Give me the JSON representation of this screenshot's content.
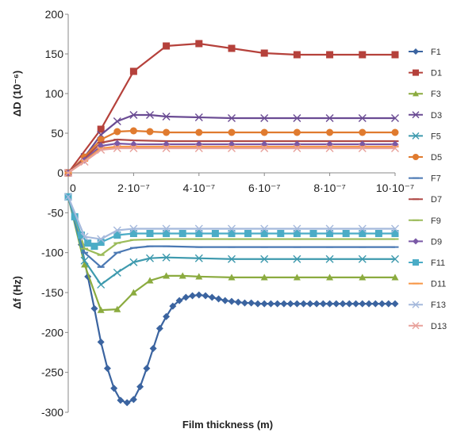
{
  "chart_data": {
    "type": "line",
    "xlabel": "Film thickness (m)",
    "grid": false,
    "legend_position": "right",
    "x_ticks": [
      "0",
      "2·10⁻⁷",
      "4·10⁻⁷",
      "6·10⁻⁷",
      "8·10⁻⁷",
      "10·10⁻⁷"
    ],
    "x_tick_values": [
      0,
      2e-07,
      4e-07,
      6e-07,
      8e-07,
      1e-06
    ],
    "xlim": [
      0,
      1e-06
    ],
    "panels": [
      {
        "id": "top",
        "ylabel": "ΔD (10⁻⁶)",
        "ylim": [
          0,
          200
        ],
        "y_ticks": [
          0,
          50,
          100,
          150,
          200
        ]
      },
      {
        "id": "bottom",
        "ylabel": "Δf (Hz)",
        "ylim": [
          -300,
          0
        ],
        "y_ticks": [
          -50,
          -100,
          -150,
          -200,
          -250,
          -300
        ]
      }
    ],
    "series": [
      {
        "name": "F1",
        "panel": "bottom",
        "color": "#3b64a0",
        "marker": "diamond",
        "x": [
          0,
          2e-08,
          4e-08,
          6e-08,
          8e-08,
          1e-07,
          1.2e-07,
          1.4e-07,
          1.6e-07,
          1.8e-07,
          2e-07,
          2.2e-07,
          2.4e-07,
          2.6e-07,
          2.8e-07,
          3e-07,
          3.2e-07,
          3.4e-07,
          3.6e-07,
          3.8e-07,
          4e-07,
          4.2e-07,
          4.4e-07,
          4.6e-07,
          4.8e-07,
          5e-07,
          5.2e-07,
          5.4e-07,
          5.6e-07,
          5.8e-07,
          6e-07,
          6.2e-07,
          6.4e-07,
          6.6e-07,
          6.8e-07,
          7e-07,
          7.2e-07,
          7.4e-07,
          7.6e-07,
          7.8e-07,
          8e-07,
          8.2e-07,
          8.4e-07,
          8.6e-07,
          8.8e-07,
          9e-07,
          9.2e-07,
          9.4e-07,
          9.6e-07,
          9.8e-07,
          1e-06
        ],
        "y": [
          -30,
          -55,
          -90,
          -130,
          -170,
          -212,
          -245,
          -270,
          -285,
          -288,
          -284,
          -268,
          -245,
          -220,
          -195,
          -180,
          -167,
          -160,
          -156,
          -154,
          -153,
          -154,
          -156,
          -158,
          -160,
          -161,
          -162,
          -163,
          -163,
          -164,
          -164,
          -164,
          -164,
          -164,
          -164,
          -164,
          -164,
          -164,
          -164,
          -164,
          -164,
          -164,
          -164,
          -164,
          -164,
          -164,
          -164,
          -164,
          -164,
          -164,
          -164
        ]
      },
      {
        "name": "D1",
        "panel": "top",
        "color": "#b5413b",
        "marker": "square",
        "x": [
          0,
          1e-07,
          2e-07,
          3e-07,
          4e-07,
          5e-07,
          6e-07,
          7e-07,
          8e-07,
          9e-07,
          1e-06
        ],
        "y": [
          0,
          55,
          128,
          160,
          163,
          157,
          151,
          149,
          149,
          149,
          149
        ]
      },
      {
        "name": "F3",
        "panel": "bottom",
        "color": "#8bab3f",
        "marker": "triangle",
        "x": [
          0,
          5e-08,
          1e-07,
          1.5e-07,
          2e-07,
          2.5e-07,
          3e-07,
          3.5e-07,
          4e-07,
          5e-07,
          6e-07,
          7e-07,
          8e-07,
          9e-07,
          1e-06
        ],
        "y": [
          -30,
          -115,
          -172,
          -171,
          -150,
          -135,
          -129,
          -129,
          -130,
          -131,
          -131,
          -131,
          -131,
          -131,
          -131
        ]
      },
      {
        "name": "D3",
        "panel": "top",
        "color": "#6a4b93",
        "marker": "x",
        "x": [
          0,
          5e-08,
          1e-07,
          1.5e-07,
          2e-07,
          2.5e-07,
          3e-07,
          4e-07,
          5e-07,
          6e-07,
          7e-07,
          8e-07,
          9e-07,
          1e-06
        ],
        "y": [
          0,
          20,
          48,
          65,
          73,
          73,
          71,
          70,
          69,
          69,
          69,
          69,
          69,
          69
        ]
      },
      {
        "name": "F5",
        "panel": "bottom",
        "color": "#3e9aae",
        "marker": "x",
        "x": [
          0,
          5e-08,
          1e-07,
          1.5e-07,
          2e-07,
          2.5e-07,
          3e-07,
          4e-07,
          5e-07,
          6e-07,
          7e-07,
          8e-07,
          9e-07,
          1e-06
        ],
        "y": [
          -30,
          -110,
          -140,
          -125,
          -112,
          -107,
          -106,
          -107,
          -108,
          -108,
          -108,
          -108,
          -108,
          -108
        ]
      },
      {
        "name": "D5",
        "panel": "top",
        "color": "#e07b2f",
        "marker": "circle",
        "x": [
          0,
          5e-08,
          1e-07,
          1.5e-07,
          2e-07,
          2.5e-07,
          3e-07,
          4e-07,
          5e-07,
          6e-07,
          7e-07,
          8e-07,
          9e-07,
          1e-06
        ],
        "y": [
          0,
          20,
          42,
          52,
          53,
          52,
          51,
          51,
          51,
          51,
          51,
          51,
          51,
          51
        ]
      },
      {
        "name": "F7",
        "panel": "bottom",
        "color": "#4a78b3",
        "marker": "dash",
        "x": [
          0,
          5e-08,
          1e-07,
          1.5e-07,
          2e-07,
          2.5e-07,
          3e-07,
          4e-07,
          5e-07,
          6e-07,
          7e-07,
          8e-07,
          9e-07,
          1e-06
        ],
        "y": [
          -30,
          -100,
          -118,
          -100,
          -94,
          -92,
          -92,
          -93,
          -93,
          -93,
          -93,
          -93,
          -93,
          -93
        ]
      },
      {
        "name": "D7",
        "panel": "top",
        "color": "#b04a48",
        "marker": "dash",
        "x": [
          0,
          5e-08,
          1e-07,
          1.5e-07,
          2e-07,
          3e-07,
          4e-07,
          5e-07,
          6e-07,
          7e-07,
          8e-07,
          9e-07,
          1e-06
        ],
        "y": [
          0,
          18,
          38,
          42,
          41,
          40,
          40,
          40,
          40,
          40,
          40,
          40,
          40
        ]
      },
      {
        "name": "F9",
        "panel": "bottom",
        "color": "#9bbb59",
        "marker": "dash",
        "x": [
          0,
          5e-08,
          1e-07,
          1.5e-07,
          2e-07,
          3e-07,
          4e-07,
          5e-07,
          6e-07,
          7e-07,
          8e-07,
          9e-07,
          1e-06
        ],
        "y": [
          -30,
          -95,
          -103,
          -88,
          -84,
          -83,
          -83,
          -83,
          -83,
          -83,
          -83,
          -83,
          -83
        ]
      },
      {
        "name": "D9",
        "panel": "top",
        "color": "#7a59a6",
        "marker": "diamond",
        "x": [
          0,
          5e-08,
          1e-07,
          1.5e-07,
          2e-07,
          3e-07,
          4e-07,
          5e-07,
          6e-07,
          7e-07,
          8e-07,
          9e-07,
          1e-06
        ],
        "y": [
          0,
          16,
          34,
          37,
          36,
          36,
          36,
          36,
          36,
          36,
          36,
          36,
          36
        ]
      },
      {
        "name": "F11",
        "panel": "bottom",
        "color": "#4bacc6",
        "marker": "square",
        "x": [
          0,
          2e-08,
          4e-08,
          6e-08,
          8e-08,
          1e-07,
          1.5e-07,
          2e-07,
          2.5e-07,
          3e-07,
          3.5e-07,
          4e-07,
          4.5e-07,
          5e-07,
          5.5e-07,
          6e-07,
          6.5e-07,
          7e-07,
          7.5e-07,
          8e-07,
          8.5e-07,
          9e-07,
          9.5e-07,
          1e-06
        ],
        "y": [
          -30,
          -55,
          -78,
          -88,
          -92,
          -87,
          -78,
          -76,
          -76,
          -76,
          -76,
          -76,
          -76,
          -76,
          -76,
          -76,
          -76,
          -76,
          -76,
          -76,
          -76,
          -76,
          -76,
          -76
        ]
      },
      {
        "name": "D11",
        "panel": "top",
        "color": "#f79646",
        "marker": "dash",
        "x": [
          0,
          5e-08,
          1e-07,
          1.5e-07,
          2e-07,
          3e-07,
          4e-07,
          5e-07,
          6e-07,
          7e-07,
          8e-07,
          9e-07,
          1e-06
        ],
        "y": [
          0,
          15,
          31,
          33,
          33,
          33,
          33,
          33,
          33,
          33,
          33,
          33,
          33
        ]
      },
      {
        "name": "F13",
        "panel": "bottom",
        "color": "#a5b9dc",
        "marker": "x",
        "x": [
          0,
          5e-08,
          1e-07,
          1.5e-07,
          2e-07,
          3e-07,
          4e-07,
          5e-07,
          6e-07,
          7e-07,
          8e-07,
          9e-07,
          1e-06
        ],
        "y": [
          -30,
          -80,
          -83,
          -72,
          -70,
          -70,
          -70,
          -70,
          -70,
          -70,
          -70,
          -70,
          -70
        ]
      },
      {
        "name": "D13",
        "panel": "top",
        "color": "#e8a19b",
        "marker": "x",
        "x": [
          0,
          5e-08,
          1e-07,
          1.5e-07,
          2e-07,
          3e-07,
          4e-07,
          5e-07,
          6e-07,
          7e-07,
          8e-07,
          9e-07,
          1e-06
        ],
        "y": [
          0,
          14,
          29,
          31,
          31,
          31,
          31,
          31,
          31,
          31,
          31,
          31,
          31
        ]
      }
    ]
  }
}
